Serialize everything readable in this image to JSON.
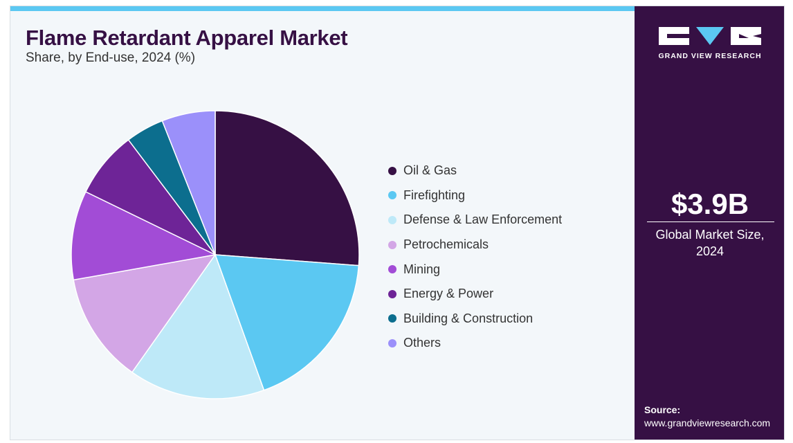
{
  "header": {
    "title": "Flame Retardant Apparel Market",
    "subtitle": "Share, by End-use, 2024 (%)"
  },
  "sidebar": {
    "logo_text": "GRAND VIEW RESEARCH",
    "market_value": "$3.9B",
    "market_label_line1": "Global Market Size,",
    "market_label_line2": "2024",
    "source_label": "Source:",
    "source_url": "www.grandviewresearch.com"
  },
  "colors": {
    "brand": "#361044",
    "accent": "#5bc8f2",
    "background": "#f3f7fa"
  },
  "chart_data": {
    "type": "pie",
    "title": "Flame Retardant Apparel Market",
    "subtitle": "Share, by End-use, 2024 (%)",
    "legend_position": "right",
    "start_angle_deg": 0,
    "direction": "clockwise",
    "slices": [
      {
        "label": "Oil & Gas",
        "value": 26.2,
        "color": "#361044"
      },
      {
        "label": "Firefighting",
        "value": 18.3,
        "color": "#5bc8f2"
      },
      {
        "label": "Defense & Law Enforcement",
        "value": 15.3,
        "color": "#bee9f8"
      },
      {
        "label": "Petrochemicals",
        "value": 12.4,
        "color": "#d3a6e6"
      },
      {
        "label": "Mining",
        "value": 10.0,
        "color": "#a24cd6"
      },
      {
        "label": "Energy & Power",
        "value": 7.5,
        "color": "#6e2497"
      },
      {
        "label": "Building & Construction",
        "value": 4.3,
        "color": "#0c6e8e"
      },
      {
        "label": "Others",
        "value": 6.0,
        "color": "#9b90fa"
      }
    ]
  }
}
